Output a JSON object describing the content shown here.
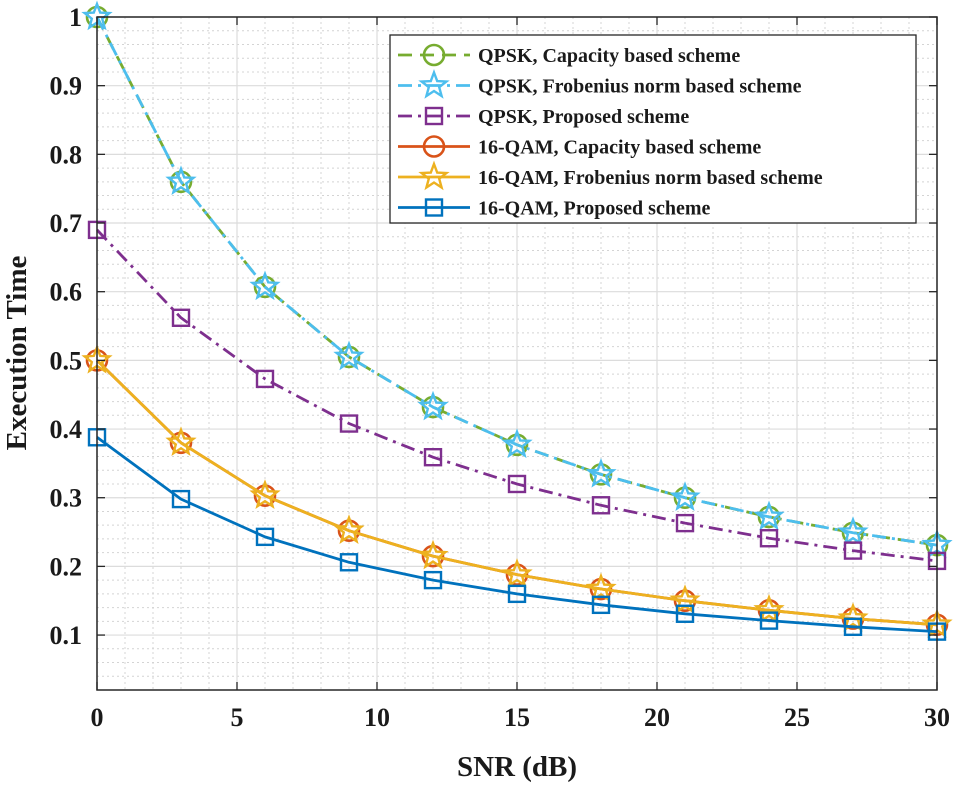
{
  "chart_data": {
    "type": "line",
    "xlabel": "SNR (dB)",
    "ylabel": "Execution Time",
    "xlim": [
      0,
      30
    ],
    "ylim": [
      0.02,
      1
    ],
    "xticks": [
      0,
      5,
      10,
      15,
      20,
      25,
      30
    ],
    "xtick_labels": [
      "0",
      "5",
      "10",
      "15",
      "20",
      "25",
      "30"
    ],
    "yticks": [
      0.1,
      0.2,
      0.3,
      0.4,
      0.5,
      0.6,
      0.7,
      0.8,
      0.9,
      1
    ],
    "ytick_labels": [
      "0.1",
      "0.2",
      "0.3",
      "0.4",
      "0.5",
      "0.6",
      "0.7",
      "0.8",
      "0.9",
      "1"
    ],
    "grid": true,
    "minor_grid": true,
    "legend_position": "top-right",
    "x": [
      0,
      3,
      6,
      9,
      12,
      15,
      18,
      21,
      24,
      27,
      30
    ],
    "series": [
      {
        "name": "QPSK, Capacity based scheme",
        "color": "#77ac30",
        "dash": "dashed",
        "marker": "circle",
        "values": [
          1.0,
          0.76,
          0.607,
          0.505,
          0.432,
          0.377,
          0.334,
          0.3,
          0.272,
          0.249,
          0.231
        ]
      },
      {
        "name": "QPSK, Frobenius norm based scheme",
        "color": "#4dbeee",
        "dash": "dashdot",
        "marker": "star",
        "values": [
          1.0,
          0.76,
          0.607,
          0.505,
          0.432,
          0.377,
          0.334,
          0.3,
          0.272,
          0.249,
          0.231
        ]
      },
      {
        "name": "QPSK, Proposed scheme",
        "color": "#7e2f8e",
        "dash": "dashdot",
        "marker": "square",
        "values": [
          0.69,
          0.562,
          0.473,
          0.408,
          0.359,
          0.32,
          0.289,
          0.263,
          0.241,
          0.223,
          0.208
        ]
      },
      {
        "name": "16-QAM, Capacity based scheme",
        "color": "#d95319",
        "dash": "solid",
        "marker": "circle",
        "values": [
          0.5,
          0.38,
          0.303,
          0.252,
          0.215,
          0.188,
          0.167,
          0.15,
          0.136,
          0.124,
          0.115
        ]
      },
      {
        "name": "16-QAM, Frobenius norm based scheme",
        "color": "#edb120",
        "dash": "solid",
        "marker": "star",
        "values": [
          0.5,
          0.38,
          0.303,
          0.252,
          0.215,
          0.188,
          0.167,
          0.15,
          0.136,
          0.124,
          0.115
        ]
      },
      {
        "name": "16-QAM, Proposed scheme",
        "color": "#0072bd",
        "dash": "solid",
        "marker": "square",
        "values": [
          0.388,
          0.298,
          0.243,
          0.206,
          0.18,
          0.16,
          0.144,
          0.131,
          0.121,
          0.112,
          0.105
        ]
      }
    ]
  }
}
